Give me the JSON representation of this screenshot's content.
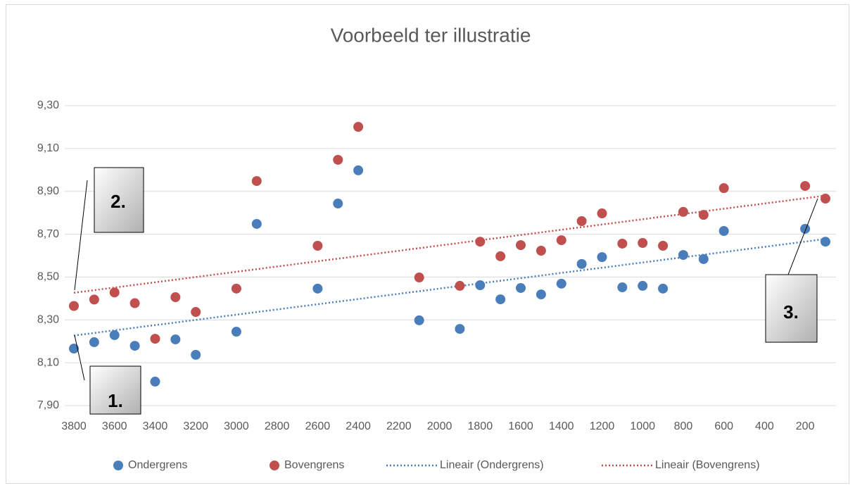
{
  "chart_data": {
    "type": "scatter",
    "title": "Voorbeeld ter illustratie",
    "x": [
      3800,
      3700,
      3600,
      3500,
      3400,
      3300,
      3200,
      3000,
      2900,
      2600,
      2500,
      2400,
      2100,
      1900,
      1800,
      1700,
      1600,
      1500,
      1400,
      1300,
      1200,
      1100,
      1000,
      900,
      800,
      700,
      600,
      200,
      100
    ],
    "series": [
      {
        "name": "Ondergrens",
        "color": "#4a7ebb",
        "values": [
          8.166,
          8.196,
          8.229,
          8.179,
          8.012,
          8.209,
          8.137,
          8.245,
          8.748,
          8.446,
          8.843,
          8.998,
          8.298,
          8.258,
          8.462,
          8.396,
          8.449,
          8.419,
          8.469,
          8.561,
          8.593,
          8.452,
          8.459,
          8.446,
          8.603,
          8.584,
          8.715,
          8.725,
          8.665
        ]
      },
      {
        "name": "Bovengrens",
        "color": "#c0504d",
        "values": [
          8.365,
          8.395,
          8.428,
          8.378,
          8.212,
          8.406,
          8.337,
          8.446,
          8.948,
          8.646,
          9.047,
          9.201,
          8.498,
          8.459,
          8.665,
          8.597,
          8.649,
          8.623,
          8.672,
          8.761,
          8.797,
          8.656,
          8.659,
          8.646,
          8.804,
          8.79,
          8.915,
          8.925,
          8.866
        ]
      }
    ],
    "trendlines": [
      {
        "name": "Lineair (Ondergrens)",
        "series": 0
      },
      {
        "name": "Lineair (Bovengrens)",
        "series": 1
      }
    ],
    "xlim": [
      3800,
      100
    ],
    "xticks": [
      3800,
      3600,
      3400,
      3200,
      3000,
      2800,
      2600,
      2400,
      2200,
      2000,
      1800,
      1600,
      1400,
      1200,
      1000,
      800,
      600,
      400,
      200
    ],
    "ylim": [
      7.9,
      9.3
    ],
    "yticks": [
      {
        "value": 7.9,
        "label": "7,90"
      },
      {
        "value": 8.1,
        "label": "8,10"
      },
      {
        "value": 8.3,
        "label": "8,30"
      },
      {
        "value": 8.5,
        "label": "8,50"
      },
      {
        "value": 8.7,
        "label": "8,70"
      },
      {
        "value": 8.9,
        "label": "8,90"
      },
      {
        "value": 9.1,
        "label": "9,10"
      },
      {
        "value": 9.3,
        "label": "9,30"
      }
    ],
    "grid": true,
    "legend": "bottom",
    "annotations": [
      "1.",
      "2.",
      "3."
    ]
  }
}
